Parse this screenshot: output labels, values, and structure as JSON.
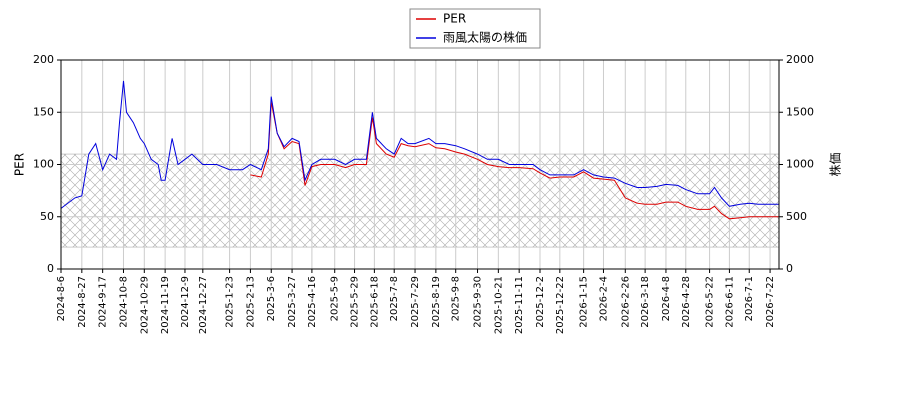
{
  "chart_data": {
    "type": "line",
    "x": [
      "2024-8-6",
      "2024-8-20",
      "2024-8-27",
      "2024-9-3",
      "2024-9-10",
      "2024-9-17",
      "2024-9-24",
      "2024-10-1",
      "2024-10-4",
      "2024-10-8",
      "2024-10-11",
      "2024-10-18",
      "2024-10-25",
      "2024-10-29",
      "2024-11-5",
      "2024-11-12",
      "2024-11-15",
      "2024-11-19",
      "2024-11-26",
      "2024-12-2",
      "2024-12-9",
      "2024-12-16",
      "2024-12-27",
      "2025-1-10",
      "2025-1-23",
      "2025-2-5",
      "2025-2-13",
      "2025-2-24",
      "2025-3-3",
      "2025-3-6",
      "2025-3-12",
      "2025-3-19",
      "2025-3-27",
      "2025-4-3",
      "2025-4-9",
      "2025-4-16",
      "2025-4-25",
      "2025-5-9",
      "2025-5-20",
      "2025-5-29",
      "2025-6-10",
      "2025-6-16",
      "2025-6-20",
      "2025-6-30",
      "2025-7-8",
      "2025-7-15",
      "2025-7-22",
      "2025-7-29",
      "2025-8-12",
      "2025-8-19",
      "2025-8-28",
      "2025-9-8",
      "2025-9-17",
      "2025-9-30",
      "2025-10-10",
      "2025-10-21",
      "2025-11-1",
      "2025-11-11",
      "2025-11-25",
      "2025-12-2",
      "2025-12-12",
      "2025-12-22",
      "2026-1-5",
      "2026-1-15",
      "2026-1-25",
      "2026-2-4",
      "2026-2-15",
      "2026-2-26",
      "2026-3-10",
      "2026-3-18",
      "2026-3-30",
      "2026-4-8",
      "2026-4-20",
      "2026-4-28",
      "2026-5-10",
      "2026-5-22",
      "2026-5-27",
      "2026-6-3",
      "2026-6-11",
      "2026-6-22",
      "2026-7-1",
      "2026-7-10",
      "2026-7-22",
      "2026-7-31"
    ],
    "series": [
      {
        "name": "PER",
        "color": "#dd0000",
        "axis": "y",
        "values": [
          null,
          null,
          null,
          null,
          null,
          null,
          null,
          null,
          null,
          null,
          null,
          null,
          null,
          null,
          null,
          null,
          null,
          null,
          null,
          null,
          null,
          null,
          null,
          null,
          null,
          null,
          90,
          88,
          110,
          160,
          130,
          115,
          122,
          120,
          80,
          98,
          100,
          100,
          97,
          100,
          100,
          145,
          120,
          110,
          107,
          120,
          118,
          117,
          120,
          116,
          115,
          112,
          110,
          105,
          100,
          98,
          97,
          97,
          96,
          92,
          87,
          88,
          88,
          93,
          87,
          86,
          85,
          68,
          63,
          62,
          62,
          64,
          64,
          60,
          57,
          57,
          60,
          53,
          48,
          49,
          50,
          50,
          50,
          50
        ]
      },
      {
        "name": "雨風太陽の株価",
        "color": "#0000dd",
        "axis": "y2",
        "values": [
          580,
          680,
          700,
          1100,
          1200,
          950,
          1100,
          1050,
          1400,
          1800,
          1500,
          1400,
          1250,
          1200,
          1050,
          1000,
          850,
          850,
          1250,
          1000,
          1050,
          1100,
          1000,
          1000,
          950,
          950,
          1000,
          950,
          1150,
          1650,
          1300,
          1170,
          1250,
          1220,
          850,
          1000,
          1050,
          1050,
          1000,
          1050,
          1050,
          1500,
          1250,
          1150,
          1100,
          1250,
          1200,
          1200,
          1250,
          1200,
          1200,
          1180,
          1150,
          1100,
          1050,
          1050,
          1000,
          1000,
          1000,
          950,
          900,
          900,
          900,
          950,
          900,
          880,
          870,
          820,
          780,
          780,
          790,
          810,
          800,
          760,
          720,
          720,
          780,
          680,
          600,
          620,
          630,
          620,
          620,
          620
        ]
      }
    ],
    "xlim": [
      "2024-8-6",
      "2026-7-31"
    ],
    "xticks": [
      "2024-8-6",
      "2024-8-27",
      "2024-9-17",
      "2024-10-8",
      "2024-10-29",
      "2024-11-19",
      "2024-12-9",
      "2024-12-27",
      "2025-1-23",
      "2025-2-13",
      "2025-3-6",
      "2025-3-27",
      "2025-4-16",
      "2025-5-9",
      "2025-5-29",
      "2025-6-18",
      "2025-7-8",
      "2025-7-29",
      "2025-8-19",
      "2025-9-8",
      "2025-9-30",
      "2025-10-21",
      "2025-11-11",
      "2025-12-2",
      "2025-12-22",
      "2026-1-15",
      "2026-2-4",
      "2026-2-26",
      "2026-3-18",
      "2026-4-8",
      "2026-4-28",
      "2026-5-22",
      "2026-6-11",
      "2026-7-1",
      "2026-7-22"
    ],
    "ylabel": "PER",
    "ylim": [
      0,
      200
    ],
    "yticks": [
      0,
      50,
      100,
      150,
      200
    ],
    "y2label": "株価",
    "y2lim": [
      0,
      2000
    ],
    "y2ticks": [
      0,
      500,
      1000,
      1500,
      2000
    ],
    "shaded_range": [
      21,
      110
    ],
    "grid": true,
    "legend": "top"
  }
}
